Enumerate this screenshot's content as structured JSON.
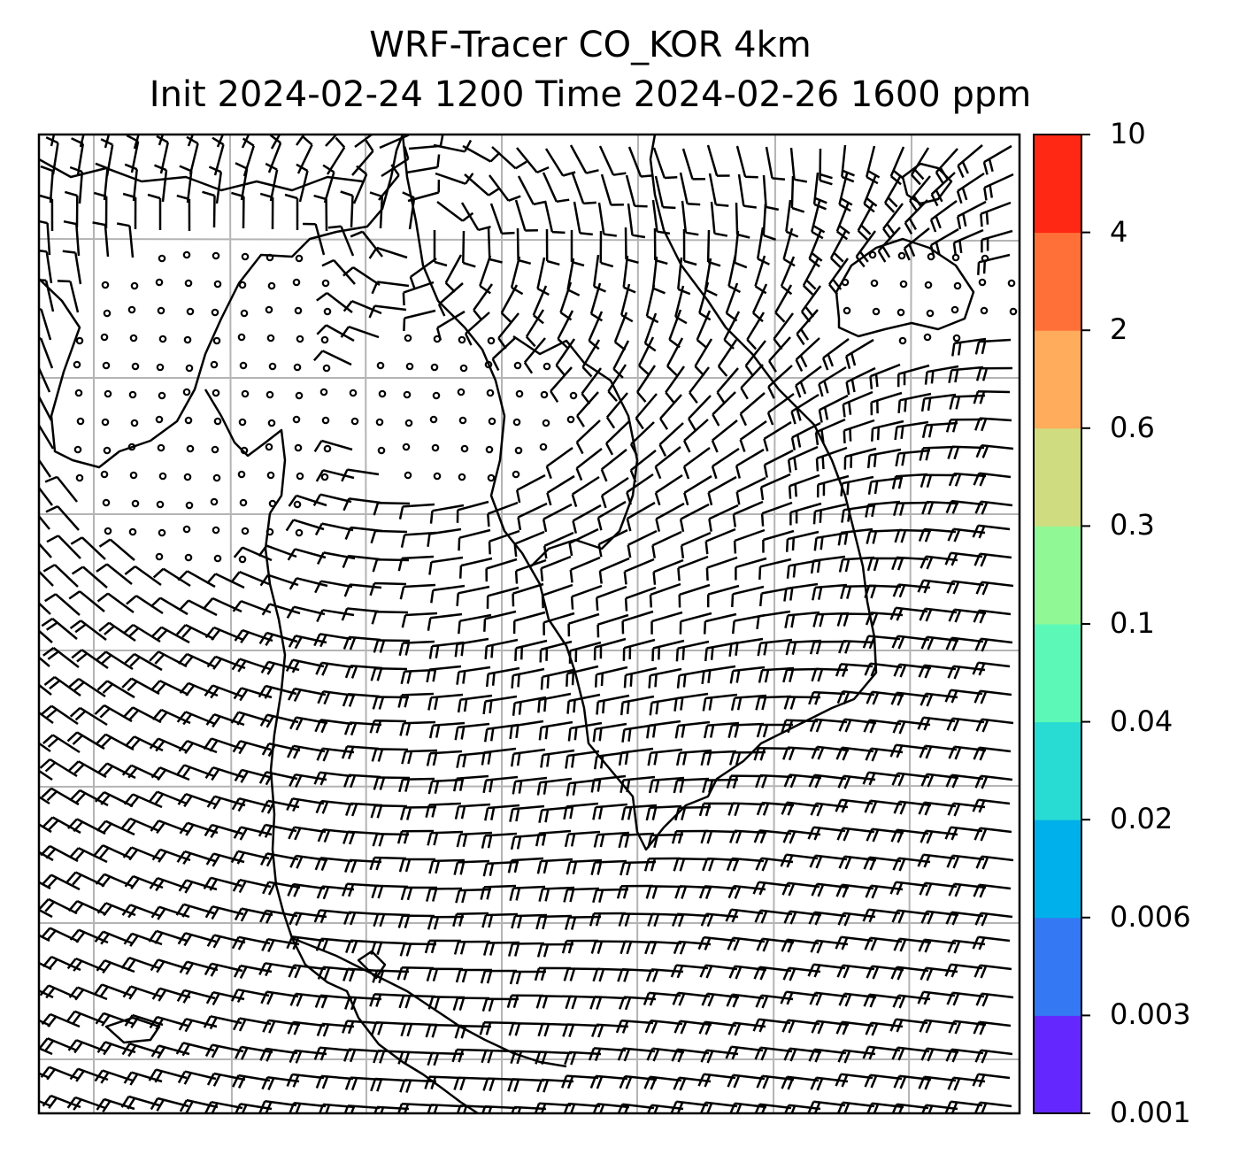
{
  "title": {
    "line1": "WRF-Tracer CO_KOR 4km",
    "line2": "Init 2024-02-24 1200 Time 2024-02-26 1600 ppm"
  },
  "colorbar": {
    "levels": [
      "0.001",
      "0.003",
      "0.006",
      "0.02",
      "0.04",
      "0.1",
      "0.3",
      "0.6",
      "2",
      "4",
      "10"
    ],
    "colors": [
      "#6428ff",
      "#3478f4",
      "#00b0ea",
      "#28dcd4",
      "#5cf8b8",
      "#90f894",
      "#d0dc80",
      "#ffac5c",
      "#ff7038",
      "#ff2814"
    ]
  },
  "map": {
    "background": "#ffffff",
    "gridline_color": "#b4b4b4",
    "coastline_color": "#000000",
    "wind_barb_color": "#000000"
  }
}
